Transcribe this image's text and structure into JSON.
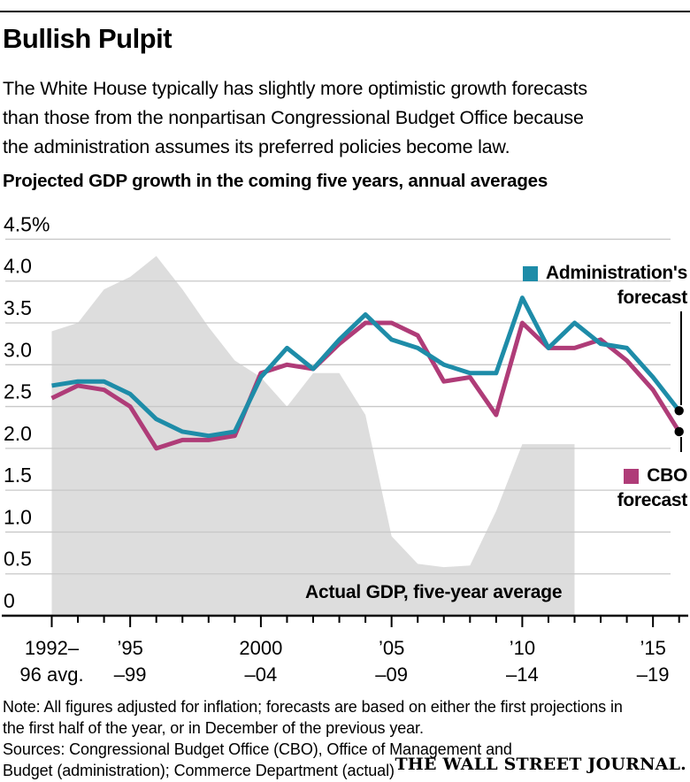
{
  "header": {
    "title": "Bullish Pulpit",
    "description_lines": [
      "The White House typically has slightly more optimistic growth forecasts",
      "than those from the nonpartisan Congressional Budget Office because",
      "the administration assumes its preferred policies become law."
    ]
  },
  "chart_data": {
    "type": "line",
    "title": "Projected GDP growth in the coming five years, annual averages",
    "unit": "%",
    "grid": true,
    "ylim": [
      0,
      4.5
    ],
    "x": [
      1992,
      1993,
      1994,
      1995,
      1996,
      1997,
      1998,
      1999,
      2000,
      2001,
      2002,
      2003,
      2004,
      2005,
      2006,
      2007,
      2008,
      2009,
      2010,
      2011,
      2012,
      2013,
      2014,
      2015,
      2016
    ],
    "series": [
      {
        "id": "admin",
        "name": "Administration's forecast",
        "color": "#1E8CA8",
        "values": [
          2.75,
          2.8,
          2.8,
          2.65,
          2.35,
          2.2,
          2.15,
          2.2,
          2.85,
          3.2,
          2.95,
          3.3,
          3.6,
          3.3,
          3.2,
          3.0,
          2.9,
          2.9,
          3.8,
          3.2,
          3.5,
          3.25,
          3.2,
          2.85,
          2.45
        ]
      },
      {
        "id": "cbo",
        "name": "CBO forecast",
        "color": "#AF3C78",
        "values": [
          2.6,
          2.75,
          2.7,
          2.5,
          2.0,
          2.1,
          2.1,
          2.15,
          2.9,
          3.0,
          2.95,
          3.25,
          3.5,
          3.5,
          3.35,
          2.8,
          2.85,
          2.4,
          3.5,
          3.2,
          3.2,
          3.3,
          3.05,
          2.7,
          2.2
        ]
      },
      {
        "id": "actual",
        "name": "Actual GDP, five-year average",
        "type": "area",
        "color": "#DDDDDD",
        "x": [
          1992,
          1993,
          1994,
          1995,
          1996,
          1997,
          1998,
          1999,
          2000,
          2001,
          2002,
          2003,
          2004,
          2005,
          2006,
          2007,
          2008,
          2009,
          2010,
          2011,
          2012
        ],
        "values": [
          3.4,
          3.5,
          3.9,
          4.05,
          4.3,
          3.9,
          3.45,
          3.05,
          2.85,
          2.5,
          2.9,
          2.9,
          2.4,
          0.95,
          0.62,
          0.58,
          0.6,
          1.25,
          2.05,
          2.05,
          2.05
        ]
      }
    ],
    "yticks": [
      {
        "value": 4.5,
        "label": "4.5%"
      },
      {
        "value": 4.0,
        "label": "4.0"
      },
      {
        "value": 3.5,
        "label": "3.5"
      },
      {
        "value": 3.0,
        "label": "3.0"
      },
      {
        "value": 2.5,
        "label": "2.5"
      },
      {
        "value": 2.0,
        "label": "2.0"
      },
      {
        "value": 1.5,
        "label": "1.5"
      },
      {
        "value": 1.0,
        "label": "1.0"
      },
      {
        "value": 0.5,
        "label": "0.5"
      },
      {
        "value": 0,
        "label": "0"
      }
    ],
    "xticks": [
      {
        "year": 1992,
        "line1": "1992–",
        "line2": "96 avg."
      },
      {
        "year": 1995,
        "line1": "’95",
        "line2": "–99"
      },
      {
        "year": 2000,
        "line1": "2000",
        "line2": "–04"
      },
      {
        "year": 2005,
        "line1": "’05",
        "line2": "–09"
      },
      {
        "year": 2010,
        "line1": "’10",
        "line2": "–14"
      },
      {
        "year": 2015,
        "line1": "’15",
        "line2": "–19"
      }
    ],
    "legend": [
      {
        "series": "admin",
        "lines": [
          "Administration's",
          "forecast"
        ]
      },
      {
        "series": "cbo",
        "lines": [
          "CBO",
          "forecast"
        ]
      }
    ],
    "legend_position": "right"
  },
  "footer": {
    "note_lines": [
      "Note: All figures adjusted for inflation; forecasts are based on either the first projections in",
      "the first half of the year, or in December of the previous year."
    ],
    "source_lines": [
      "Sources: Congressional Budget Office (CBO), Office of Management and",
      "Budget (administration); Commerce Department (actual)"
    ],
    "brand": "THE WALL STREET JOURNAL."
  }
}
